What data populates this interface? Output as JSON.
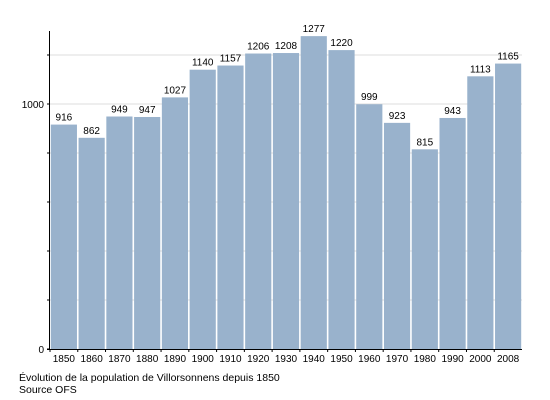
{
  "chart_data": {
    "type": "bar",
    "categories": [
      "1850",
      "1860",
      "1870",
      "1880",
      "1890",
      "1900",
      "1910",
      "1920",
      "1930",
      "1940",
      "1950",
      "1960",
      "1970",
      "1980",
      "1990",
      "2000",
      "2008"
    ],
    "values": [
      916,
      862,
      949,
      947,
      1027,
      1140,
      1157,
      1206,
      1208,
      1277,
      1220,
      999,
      923,
      815,
      943,
      1113,
      1165
    ],
    "ylim": [
      0,
      1300
    ],
    "yticks": [
      0,
      1000
    ],
    "grid": true,
    "bar_color": "#99b2cc",
    "grid_color": "#dddddd"
  },
  "caption": {
    "line1": "Évolution de la population de Villorsonnens depuis 1850",
    "line2": "Source OFS"
  }
}
